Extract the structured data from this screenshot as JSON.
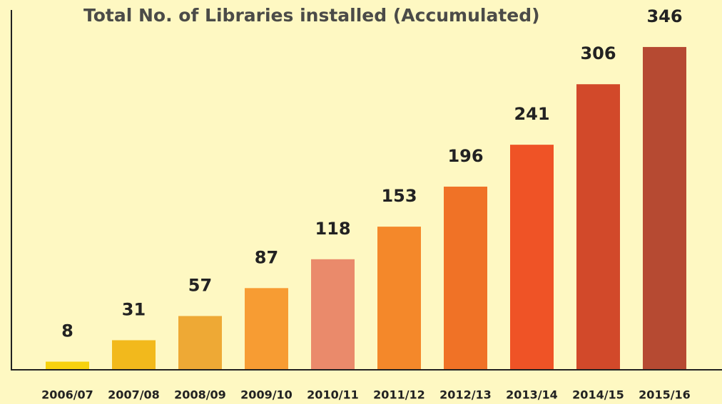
{
  "chart_data": {
    "type": "bar",
    "title": "Total No. of Libraries installed (Accumulated)",
    "categories": [
      "2006/07",
      "2007/08",
      "2008/09",
      "2009/10",
      "2010/11",
      "2011/12",
      "2012/13",
      "2013/14",
      "2014/15",
      "2015/16"
    ],
    "values": [
      8,
      31,
      57,
      87,
      118,
      153,
      196,
      241,
      306,
      346
    ],
    "colors": [
      "#f7d20e",
      "#f2b91c",
      "#eea935",
      "#f79c33",
      "#ea8a6b",
      "#f4882a",
      "#f07226",
      "#ef5326",
      "#d2492a",
      "#b64a32"
    ],
    "ylim": [
      0,
      385
    ]
  }
}
